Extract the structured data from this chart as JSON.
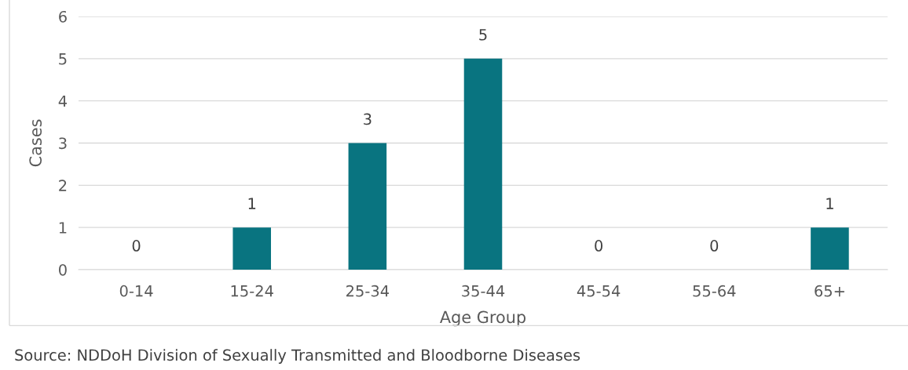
{
  "chart_data": {
    "type": "bar",
    "xlabel": "Age Group",
    "ylabel": "Cases",
    "categories": [
      "0-14",
      "15-24",
      "25-34",
      "35-44",
      "45-54",
      "55-64",
      "65+"
    ],
    "values": [
      0,
      1,
      3,
      5,
      0,
      0,
      1
    ],
    "color": "#097480",
    "ylim": [
      0,
      6
    ],
    "yticks": [
      0,
      1,
      2,
      3,
      4,
      5,
      6
    ],
    "grid": "y",
    "data_labels": true,
    "annotations": [
      "Source: NDDoH Division of Sexually Transmitted and Bloodborne Diseases"
    ]
  }
}
